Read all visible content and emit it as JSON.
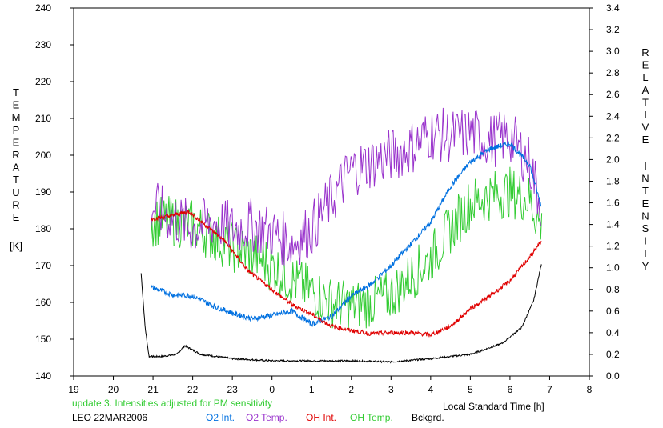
{
  "chart_data": {
    "type": "line",
    "xlabel": "Local Standard Time [h]",
    "ylabel_left": "TEMPERATURE",
    "ylabel_left_unit": "[K]",
    "ylabel_right_line1": "RELATIVE",
    "ylabel_right_line2": "INTENSITY",
    "x_ticks": [
      "19",
      "20",
      "21",
      "22",
      "23",
      "0",
      "1",
      "2",
      "3",
      "4",
      "5",
      "6",
      "7",
      "8"
    ],
    "xlim_hours_since_19": [
      0,
      13
    ],
    "y_left_ticks": [
      "140",
      "150",
      "160",
      "170",
      "180",
      "190",
      "200",
      "210",
      "220",
      "230",
      "240"
    ],
    "ylim_left": [
      140,
      240
    ],
    "y_right_ticks": [
      "0.0",
      "0.2",
      "0.4",
      "0.6",
      "0.8",
      "1.0",
      "1.2",
      "1.4",
      "1.6",
      "1.8",
      "2.0",
      "2.2",
      "2.4",
      "2.6",
      "2.8",
      "3.0",
      "3.2",
      "3.4"
    ],
    "ylim_right": [
      0,
      3.4
    ],
    "grid": false,
    "annotation": "update 3. Intensities adjusted for PM sensitivity",
    "station_date": "LEO 22MAR2006",
    "series": [
      {
        "name": "O2 Int.",
        "axis": "right",
        "color": "#0070e0",
        "x_hours_since_19": [
          1.95,
          2.5,
          3.0,
          3.5,
          4.0,
          4.5,
          5.0,
          5.5,
          6.0,
          6.5,
          7.0,
          7.5,
          8.0,
          8.5,
          9.0,
          9.5,
          10.0,
          10.5,
          11.0,
          11.5,
          11.8
        ],
        "values": [
          0.82,
          0.75,
          0.74,
          0.65,
          0.58,
          0.53,
          0.56,
          0.6,
          0.48,
          0.55,
          0.74,
          0.85,
          1.02,
          1.22,
          1.42,
          1.75,
          1.98,
          2.1,
          2.15,
          1.95,
          1.55
        ]
      },
      {
        "name": "O2 Temp.",
        "axis": "left",
        "color": "#9933cc",
        "x_hours_since_19": [
          1.95,
          2.5,
          3.0,
          3.5,
          4.0,
          4.5,
          5.0,
          5.5,
          6.0,
          6.5,
          7.0,
          7.5,
          8.0,
          8.5,
          9.0,
          9.5,
          10.0,
          10.5,
          11.0,
          11.5,
          11.8
        ],
        "values": [
          186,
          183,
          180,
          182,
          180,
          181,
          179,
          176,
          180,
          188,
          196,
          198,
          200,
          202,
          206,
          205,
          206,
          204,
          205,
          198,
          186
        ]
      },
      {
        "name": "OH Int.",
        "axis": "right",
        "color": "#e00000",
        "x_hours_since_19": [
          1.95,
          2.3,
          2.9,
          3.3,
          3.8,
          4.4,
          5.0,
          5.5,
          6.0,
          6.5,
          7.0,
          7.5,
          8.0,
          8.5,
          9.0,
          9.5,
          10.0,
          10.5,
          11.0,
          11.5,
          11.8
        ],
        "values": [
          1.45,
          1.47,
          1.52,
          1.4,
          1.25,
          0.97,
          0.8,
          0.66,
          0.57,
          0.46,
          0.42,
          0.39,
          0.4,
          0.4,
          0.38,
          0.46,
          0.62,
          0.74,
          0.88,
          1.1,
          1.25
        ]
      },
      {
        "name": "OH Temp.",
        "axis": "left",
        "color": "#33cc33",
        "x_hours_since_19": [
          1.95,
          2.5,
          3.0,
          3.5,
          4.0,
          4.5,
          5.0,
          5.5,
          6.0,
          6.5,
          7.0,
          7.5,
          8.0,
          8.5,
          9.0,
          9.5,
          10.0,
          10.5,
          11.0,
          11.5,
          11.8
        ],
        "values": [
          182,
          182,
          181,
          178,
          175,
          173,
          170,
          166,
          163,
          160,
          159,
          160,
          162,
          167,
          172,
          180,
          187,
          189,
          190,
          188,
          180
        ]
      },
      {
        "name": "Bckgrd.",
        "axis": "right",
        "color": "#000000",
        "x_hours_since_19": [
          1.7,
          1.8,
          1.9,
          2.2,
          2.6,
          2.8,
          3.2,
          4.0,
          5.0,
          6.0,
          7.0,
          8.0,
          9.0,
          10.0,
          10.8,
          11.3,
          11.6,
          11.8
        ],
        "values": [
          0.95,
          0.45,
          0.18,
          0.18,
          0.2,
          0.28,
          0.2,
          0.16,
          0.14,
          0.14,
          0.14,
          0.13,
          0.16,
          0.2,
          0.3,
          0.45,
          0.7,
          1.05
        ]
      }
    ]
  }
}
